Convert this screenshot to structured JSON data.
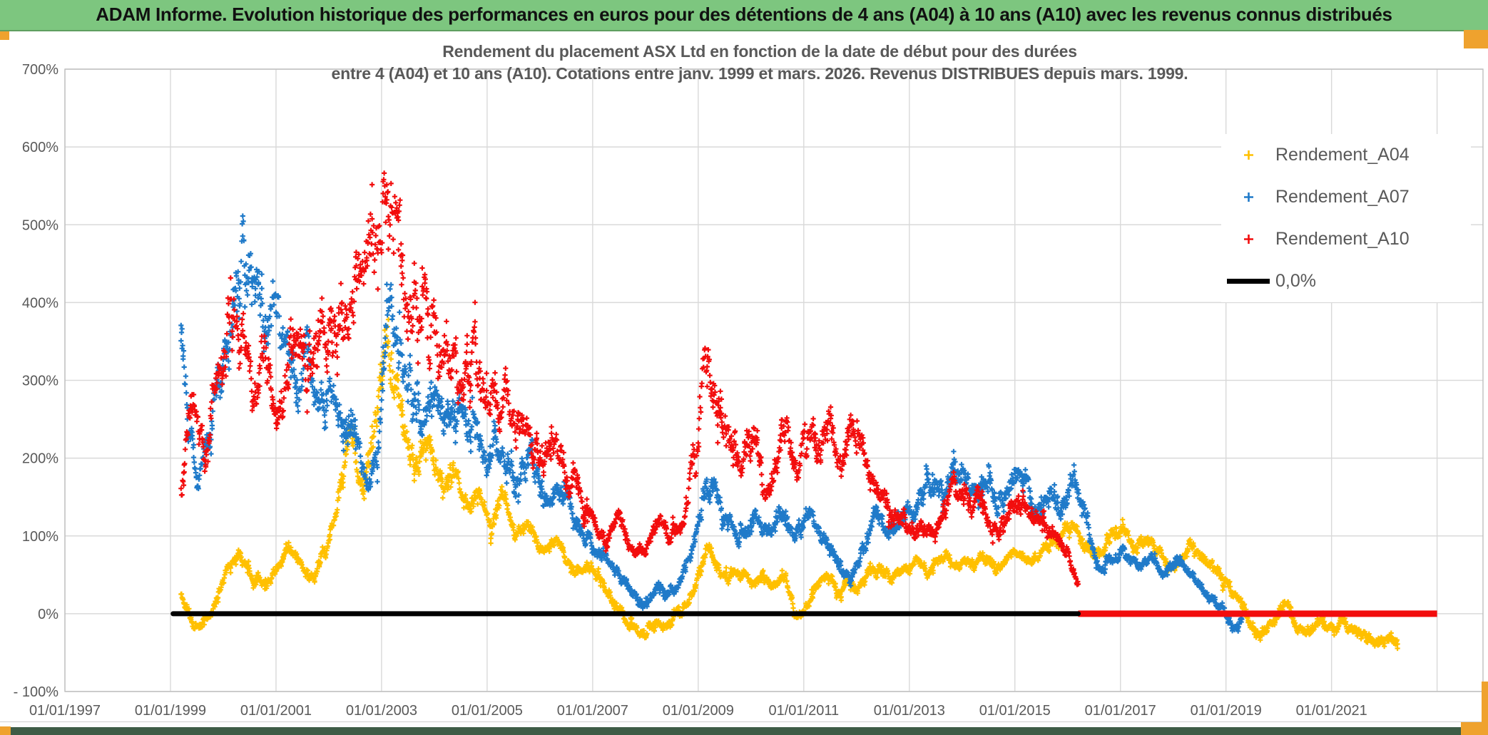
{
  "header": {
    "title": "ADAM Informe. Evolution historique des performances en euros pour des détentions de 4 ans (A04) à 10 ans (A10) avec les revenus connus distribués"
  },
  "chart": {
    "title_line1": "Rendement du placement ASX Ltd en fonction de la date de début pour des durées",
    "title_line2": "entre 4 (A04) et 10 ans (A10). Cotations entre janv. 1999 et mars. 2026. Revenus DISTRIBUES depuis mars. 1999."
  },
  "colors": {
    "header_bg": "#7DC67F",
    "accent_orange": "#EFA22E",
    "text_gray": "#595959",
    "gridline": "#D9D9D9",
    "plot_border": "#BFBFBF",
    "bottom_strip": "#3E5C46"
  },
  "chart_data": {
    "type": "scatter",
    "title": "Rendement du placement ASX Ltd en fonction de la date de début pour des durées entre 4 (A04) et 10 ans (A10). Cotations entre janv. 1999 et mars. 2026. Revenus DISTRIBUES depuis mars. 1999.",
    "x_axis": {
      "labels": [
        "01/01/1997",
        "01/01/1999",
        "01/01/2001",
        "01/01/2003",
        "01/01/2005",
        "01/01/2007",
        "01/01/2009",
        "01/01/2011",
        "01/01/2013",
        "01/01/2015",
        "01/01/2017",
        "01/01/2019",
        "01/01/2021"
      ],
      "start_year": 1997,
      "end_year": 2023.87,
      "gridline_step_years": 2
    },
    "y_axis": {
      "min": -100,
      "max": 700,
      "step": 100,
      "unit": "%",
      "labels": [
        "700%",
        "600%",
        "500%",
        "400%",
        "300%",
        "200%",
        "100%",
        "0%",
        "- 100%"
      ]
    },
    "legend_position": "top-right",
    "series": [
      {
        "name": "Rendement_A04",
        "color": "#FFC000",
        "marker": "plus",
        "span": [
          1999.2,
          2022.25
        ],
        "anchors": [
          [
            1999.2,
            25
          ],
          [
            1999.3,
            2
          ],
          [
            1999.45,
            -25
          ],
          [
            1999.6,
            -10
          ],
          [
            1999.8,
            15
          ],
          [
            2000.0,
            55
          ],
          [
            2000.3,
            80
          ],
          [
            2000.5,
            48
          ],
          [
            2000.7,
            35
          ],
          [
            2000.95,
            55
          ],
          [
            2001.2,
            85
          ],
          [
            2001.45,
            60
          ],
          [
            2001.7,
            45
          ],
          [
            2001.95,
            80
          ],
          [
            2002.15,
            150
          ],
          [
            2002.4,
            225
          ],
          [
            2002.6,
            150
          ],
          [
            2002.8,
            220
          ],
          [
            2003.0,
            330
          ],
          [
            2003.08,
            390
          ],
          [
            2003.25,
            300
          ],
          [
            2003.45,
            225
          ],
          [
            2003.65,
            185
          ],
          [
            2003.9,
            225
          ],
          [
            2004.1,
            165
          ],
          [
            2004.35,
            190
          ],
          [
            2004.6,
            128
          ],
          [
            2004.8,
            158
          ],
          [
            2005.05,
            108
          ],
          [
            2005.25,
            170
          ],
          [
            2005.5,
            95
          ],
          [
            2005.75,
            118
          ],
          [
            2006.0,
            78
          ],
          [
            2006.3,
            95
          ],
          [
            2006.6,
            52
          ],
          [
            2006.9,
            62
          ],
          [
            2007.15,
            35
          ],
          [
            2007.4,
            12
          ],
          [
            2007.65,
            -12
          ],
          [
            2007.95,
            -28
          ],
          [
            2008.15,
            -8
          ],
          [
            2008.35,
            -20
          ],
          [
            2008.55,
            -2
          ],
          [
            2008.8,
            20
          ],
          [
            2009.0,
            55
          ],
          [
            2009.15,
            88
          ],
          [
            2009.35,
            58
          ],
          [
            2009.55,
            42
          ],
          [
            2009.75,
            58
          ],
          [
            2009.95,
            38
          ],
          [
            2010.15,
            52
          ],
          [
            2010.4,
            32
          ],
          [
            2010.6,
            50
          ],
          [
            2010.85,
            -12
          ],
          [
            2011.0,
            8
          ],
          [
            2011.2,
            35
          ],
          [
            2011.4,
            45
          ],
          [
            2011.6,
            28
          ],
          [
            2011.8,
            42
          ],
          [
            2012.0,
            28
          ],
          [
            2012.2,
            48
          ],
          [
            2012.45,
            62
          ],
          [
            2012.65,
            45
          ],
          [
            2012.9,
            55
          ],
          [
            2013.15,
            65
          ],
          [
            2013.4,
            52
          ],
          [
            2013.6,
            70
          ],
          [
            2013.85,
            60
          ],
          [
            2014.1,
            62
          ],
          [
            2014.35,
            72
          ],
          [
            2014.6,
            58
          ],
          [
            2014.85,
            70
          ],
          [
            2015.1,
            80
          ],
          [
            2015.35,
            68
          ],
          [
            2015.6,
            92
          ],
          [
            2015.85,
            95
          ],
          [
            2016.1,
            120
          ],
          [
            2016.3,
            92
          ],
          [
            2016.5,
            72
          ],
          [
            2016.75,
            88
          ],
          [
            2017.0,
            108
          ],
          [
            2017.25,
            88
          ],
          [
            2017.5,
            95
          ],
          [
            2017.75,
            68
          ],
          [
            2018.0,
            58
          ],
          [
            2018.2,
            78
          ],
          [
            2018.35,
            95
          ],
          [
            2018.55,
            72
          ],
          [
            2018.75,
            58
          ],
          [
            2019.0,
            38
          ],
          [
            2019.2,
            15
          ],
          [
            2019.45,
            -12
          ],
          [
            2019.65,
            -25
          ],
          [
            2019.9,
            -15
          ],
          [
            2020.1,
            22
          ],
          [
            2020.3,
            -12
          ],
          [
            2020.5,
            -25
          ],
          [
            2020.7,
            -10
          ],
          [
            2020.95,
            -20
          ],
          [
            2021.15,
            -8
          ],
          [
            2021.4,
            -18
          ],
          [
            2021.6,
            -28
          ],
          [
            2021.8,
            -35
          ],
          [
            2022.0,
            -30
          ],
          [
            2022.25,
            -35
          ]
        ]
      },
      {
        "name": "Rendement_A07",
        "color": "#1F7AC9",
        "marker": "plus",
        "span": [
          1999.2,
          2019.3
        ],
        "anchors": [
          [
            1999.2,
            365
          ],
          [
            1999.35,
            240
          ],
          [
            1999.5,
            160
          ],
          [
            1999.7,
            240
          ],
          [
            1999.9,
            310
          ],
          [
            2000.1,
            360
          ],
          [
            2000.35,
            460
          ],
          [
            2000.55,
            420
          ],
          [
            2000.75,
            360
          ],
          [
            2000.95,
            415
          ],
          [
            2001.15,
            345
          ],
          [
            2001.35,
            290
          ],
          [
            2001.55,
            325
          ],
          [
            2001.75,
            250
          ],
          [
            2001.95,
            295
          ],
          [
            2002.15,
            235
          ],
          [
            2002.35,
            265
          ],
          [
            2002.55,
            205
          ],
          [
            2002.75,
            160
          ],
          [
            2002.95,
            235
          ],
          [
            2003.08,
            425
          ],
          [
            2003.3,
            330
          ],
          [
            2003.5,
            280
          ],
          [
            2003.75,
            245
          ],
          [
            2004.0,
            278
          ],
          [
            2004.3,
            230
          ],
          [
            2004.6,
            258
          ],
          [
            2004.9,
            198
          ],
          [
            2005.2,
            218
          ],
          [
            2005.5,
            168
          ],
          [
            2005.8,
            198
          ],
          [
            2006.1,
            138
          ],
          [
            2006.4,
            158
          ],
          [
            2006.7,
            115
          ],
          [
            2007.0,
            88
          ],
          [
            2007.3,
            65
          ],
          [
            2007.6,
            35
          ],
          [
            2007.95,
            8
          ],
          [
            2008.2,
            38
          ],
          [
            2008.45,
            18
          ],
          [
            2008.7,
            55
          ],
          [
            2008.95,
            115
          ],
          [
            2009.15,
            175
          ],
          [
            2009.4,
            135
          ],
          [
            2009.6,
            118
          ],
          [
            2009.85,
            98
          ],
          [
            2010.05,
            128
          ],
          [
            2010.3,
            98
          ],
          [
            2010.55,
            135
          ],
          [
            2010.8,
            92
          ],
          [
            2011.05,
            125
          ],
          [
            2011.3,
            102
          ],
          [
            2011.55,
            78
          ],
          [
            2011.85,
            42
          ],
          [
            2012.1,
            85
          ],
          [
            2012.35,
            125
          ],
          [
            2012.6,
            105
          ],
          [
            2012.85,
            125
          ],
          [
            2013.1,
            138
          ],
          [
            2013.35,
            155
          ],
          [
            2013.6,
            148
          ],
          [
            2013.85,
            185
          ],
          [
            2014.1,
            158
          ],
          [
            2014.35,
            172
          ],
          [
            2014.6,
            148
          ],
          [
            2014.85,
            162
          ],
          [
            2015.1,
            185
          ],
          [
            2015.35,
            128
          ],
          [
            2015.6,
            148
          ],
          [
            2015.85,
            132
          ],
          [
            2016.1,
            192
          ],
          [
            2016.3,
            122
          ],
          [
            2016.55,
            52
          ],
          [
            2016.8,
            68
          ],
          [
            2017.05,
            82
          ],
          [
            2017.3,
            60
          ],
          [
            2017.55,
            72
          ],
          [
            2017.8,
            55
          ],
          [
            2018.05,
            75
          ],
          [
            2018.3,
            52
          ],
          [
            2018.55,
            32
          ],
          [
            2018.8,
            12
          ],
          [
            2019.0,
            -5
          ],
          [
            2019.15,
            -18
          ],
          [
            2019.3,
            -15
          ]
        ]
      },
      {
        "name": "Rendement_A10",
        "color": "#F20D0D",
        "marker": "plus",
        "span": [
          1999.2,
          2016.2
        ],
        "zero_run": [
          2016.2,
          2023.0
        ],
        "anchors": [
          [
            1999.2,
            160
          ],
          [
            1999.35,
            295
          ],
          [
            1999.5,
            235
          ],
          [
            1999.65,
            180
          ],
          [
            1999.8,
            330
          ],
          [
            1999.95,
            290
          ],
          [
            2000.15,
            420
          ],
          [
            2000.35,
            330
          ],
          [
            2000.55,
            275
          ],
          [
            2000.75,
            345
          ],
          [
            2000.95,
            255
          ],
          [
            2001.15,
            300
          ],
          [
            2001.35,
            375
          ],
          [
            2001.55,
            310
          ],
          [
            2001.75,
            385
          ],
          [
            2001.95,
            340
          ],
          [
            2002.15,
            362
          ],
          [
            2002.35,
            390
          ],
          [
            2002.55,
            442
          ],
          [
            2002.75,
            475
          ],
          [
            2002.9,
            515
          ],
          [
            2003.05,
            580
          ],
          [
            2003.2,
            505
          ],
          [
            2003.4,
            430
          ],
          [
            2003.6,
            378
          ],
          [
            2003.8,
            415
          ],
          [
            2004.0,
            362
          ],
          [
            2004.2,
            332
          ],
          [
            2004.45,
            298
          ],
          [
            2004.7,
            338
          ],
          [
            2004.9,
            285
          ],
          [
            2005.1,
            262
          ],
          [
            2005.3,
            292
          ],
          [
            2005.5,
            248
          ],
          [
            2005.7,
            225
          ],
          [
            2005.95,
            198
          ],
          [
            2006.2,
            232
          ],
          [
            2006.45,
            188
          ],
          [
            2006.7,
            162
          ],
          [
            2006.95,
            128
          ],
          [
            2007.2,
            98
          ],
          [
            2007.45,
            122
          ],
          [
            2007.7,
            88
          ],
          [
            2007.95,
            72
          ],
          [
            2008.2,
            118
          ],
          [
            2008.45,
            92
          ],
          [
            2008.7,
            135
          ],
          [
            2008.95,
            225
          ],
          [
            2009.1,
            352
          ],
          [
            2009.25,
            285
          ],
          [
            2009.45,
            242
          ],
          [
            2009.65,
            228
          ],
          [
            2009.85,
            198
          ],
          [
            2010.05,
            232
          ],
          [
            2010.25,
            135
          ],
          [
            2010.45,
            195
          ],
          [
            2010.65,
            238
          ],
          [
            2010.85,
            172
          ],
          [
            2011.05,
            248
          ],
          [
            2011.25,
            205
          ],
          [
            2011.45,
            248
          ],
          [
            2011.65,
            185
          ],
          [
            2011.9,
            245
          ],
          [
            2012.1,
            205
          ],
          [
            2012.35,
            158
          ],
          [
            2012.6,
            138
          ],
          [
            2012.85,
            112
          ],
          [
            2013.05,
            95
          ],
          [
            2013.3,
            118
          ],
          [
            2013.55,
            112
          ],
          [
            2013.8,
            162
          ],
          [
            2014.05,
            135
          ],
          [
            2014.3,
            148
          ],
          [
            2014.55,
            108
          ],
          [
            2014.8,
            112
          ],
          [
            2015.05,
            148
          ],
          [
            2015.3,
            118
          ],
          [
            2015.55,
            122
          ],
          [
            2015.8,
            92
          ],
          [
            2016.0,
            65
          ],
          [
            2016.2,
            35
          ]
        ]
      },
      {
        "name": "0,0%",
        "color": "#000000",
        "type": "line",
        "points": [
          [
            1999.05,
            0
          ],
          [
            2016.2,
            0
          ]
        ]
      }
    ]
  }
}
